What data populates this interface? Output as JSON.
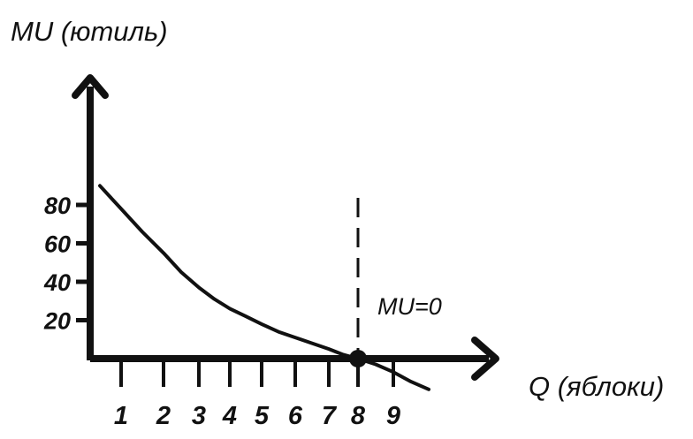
{
  "chart_data": {
    "type": "line",
    "ylabel": "MU (ютиль)",
    "xlabel": "Q (яблоки)",
    "yticks": [
      "20",
      "40",
      "60",
      "80"
    ],
    "xticks": [
      "1",
      "2",
      "3",
      "4",
      "5",
      "6",
      "7",
      "8",
      "9"
    ],
    "series": [
      {
        "x": [
          0.5,
          1,
          1.5,
          2,
          2.5,
          3,
          3.5,
          4,
          4.5,
          5,
          5.5,
          6,
          6.5,
          7,
          7.5,
          8,
          8.5,
          9,
          9.5,
          10
        ],
        "y": [
          90,
          78,
          66,
          55,
          45,
          37,
          31,
          26,
          22,
          18,
          14,
          11,
          8,
          5,
          2,
          0,
          -3,
          -7,
          -12,
          -16
        ]
      }
    ],
    "annotation": {
      "text": "MU=0",
      "x": 8,
      "y": 0
    },
    "marker": {
      "x": 8,
      "y": 0
    },
    "vline_x": 8,
    "colors": {
      "ink": "#111111"
    }
  }
}
